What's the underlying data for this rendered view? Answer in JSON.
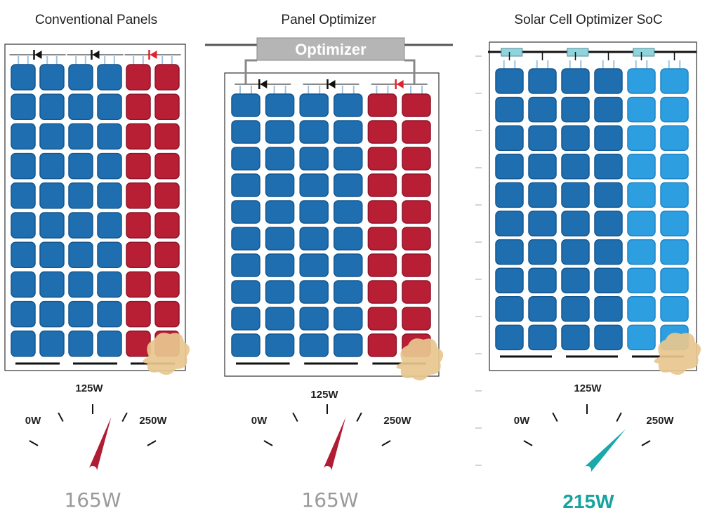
{
  "colors": {
    "blue": "#1f6fb0",
    "blue_dark": "#14578f",
    "light_blue": "#2d9fe0",
    "light_blue_dark": "#1e84c4",
    "red": "#b81f35",
    "red_dark": "#8f1428",
    "frame": "#333333",
    "wire": "#9ec3df",
    "optimizer_box": "#b5b5b5",
    "optimizer_text": "#ffffff",
    "chip": "#8fd3dc",
    "smudge": "#e8c78f",
    "needle_red": "#b01c33",
    "needle_teal": "#1aa9a9",
    "output_gray": "#9a9a9a",
    "output_teal": "#17a4a0",
    "diode_black": "#111111",
    "diode_red": "#e0242f"
  },
  "panels": [
    {
      "title": "Conventional Panels",
      "column_colors": [
        "blue",
        "blue",
        "red"
      ],
      "has_optimizer_box": false,
      "has_cell_chips": false,
      "gauge": {
        "tick_0": "0W",
        "tick_mid": "125W",
        "tick_max": "250W",
        "needle_value": 165,
        "needle_color": "needle_red"
      },
      "output": {
        "value": "165W",
        "color": "output_gray"
      }
    },
    {
      "title": "Panel Optimizer",
      "optimizer_label": "Optimizer",
      "column_colors": [
        "blue",
        "blue",
        "red"
      ],
      "has_optimizer_box": true,
      "has_cell_chips": false,
      "gauge": {
        "tick_0": "0W",
        "tick_mid": "125W",
        "tick_max": "250W",
        "needle_value": 165,
        "needle_color": "needle_red"
      },
      "output": {
        "value": "165W",
        "color": "output_gray"
      }
    },
    {
      "title": "Solar Cell Optimizer SoC",
      "column_colors": [
        "blue",
        "blue",
        "light_blue"
      ],
      "has_optimizer_box": false,
      "has_cell_chips": true,
      "gauge": {
        "tick_0": "0W",
        "tick_mid": "125W",
        "tick_max": "250W",
        "needle_value": 215,
        "needle_color": "needle_teal"
      },
      "output": {
        "value": "215W",
        "color": "output_teal"
      }
    }
  ]
}
